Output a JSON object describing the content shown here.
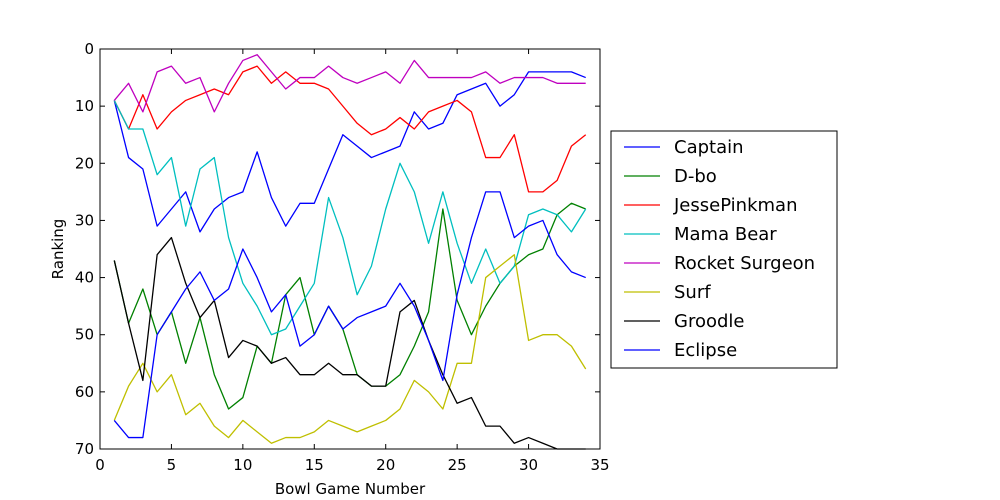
{
  "chart_data": {
    "type": "line",
    "title": "",
    "xlabel": "Bowl Game Number",
    "ylabel": "Ranking",
    "xlim": [
      0,
      35
    ],
    "ylim": [
      70,
      0
    ],
    "y_inverted": true,
    "xticks": [
      0,
      5,
      10,
      15,
      20,
      25,
      30,
      35
    ],
    "yticks": [
      0,
      10,
      20,
      30,
      40,
      50,
      60,
      70
    ],
    "grid": false,
    "legend_position": "right, outside plot",
    "x": [
      1,
      2,
      3,
      4,
      5,
      6,
      7,
      8,
      9,
      10,
      11,
      12,
      13,
      14,
      15,
      16,
      17,
      18,
      19,
      20,
      21,
      22,
      23,
      24,
      25,
      26,
      27,
      28,
      29,
      30,
      31,
      32,
      33,
      34
    ],
    "series": [
      {
        "name": "Captain",
        "color": "#0000ff",
        "values": [
          9,
          19,
          21,
          31,
          28,
          25,
          32,
          28,
          26,
          25,
          18,
          26,
          31,
          27,
          27,
          21,
          15,
          17,
          19,
          18,
          17,
          11,
          14,
          13,
          8,
          7,
          6,
          10,
          8,
          4,
          4,
          4,
          4,
          5
        ]
      },
      {
        "name": "D-bo",
        "color": "#008000",
        "values": [
          37,
          48,
          42,
          50,
          46,
          55,
          47,
          57,
          63,
          61,
          52,
          55,
          43,
          40,
          50,
          45,
          49,
          57,
          59,
          59,
          57,
          52,
          46,
          28,
          44,
          50,
          45,
          41,
          38,
          36,
          35,
          29,
          27,
          28
        ]
      },
      {
        "name": "JessePinkman",
        "color": "#ff0000",
        "values": [
          9,
          14,
          8,
          14,
          11,
          9,
          8,
          7,
          8,
          4,
          3,
          6,
          4,
          6,
          6,
          7,
          10,
          13,
          15,
          14,
          12,
          14,
          11,
          10,
          9,
          11,
          19,
          19,
          15,
          25,
          25,
          23,
          17,
          15
        ]
      },
      {
        "name": "Mama Bear",
        "color": "#00bfbf",
        "values": [
          9,
          14,
          14,
          22,
          19,
          31,
          21,
          19,
          33,
          41,
          45,
          50,
          49,
          45,
          41,
          26,
          33,
          43,
          38,
          28,
          20,
          25,
          34,
          25,
          34,
          41,
          35,
          41,
          38,
          29,
          28,
          29,
          32,
          28
        ]
      },
      {
        "name": "Rocket Surgeon",
        "color": "#bf00bf",
        "values": [
          9,
          6,
          11,
          4,
          3,
          6,
          5,
          11,
          6,
          2,
          1,
          4,
          7,
          5,
          5,
          3,
          5,
          6,
          5,
          4,
          6,
          2,
          5,
          5,
          5,
          5,
          4,
          6,
          5,
          5,
          5,
          6,
          6,
          6
        ]
      },
      {
        "name": "Surf",
        "color": "#bfbf00",
        "values": [
          65,
          59,
          55,
          60,
          57,
          64,
          62,
          66,
          68,
          65,
          67,
          69,
          68,
          68,
          67,
          65,
          66,
          67,
          66,
          65,
          63,
          58,
          60,
          63,
          55,
          55,
          40,
          38,
          36,
          51,
          50,
          50,
          52,
          56
        ]
      },
      {
        "name": "Groodle",
        "color": "#000000",
        "values": [
          37,
          48,
          58,
          36,
          33,
          41,
          47,
          44,
          54,
          51,
          52,
          55,
          54,
          57,
          57,
          55,
          57,
          57,
          59,
          59,
          46,
          44,
          51,
          57,
          62,
          61,
          66,
          66,
          69,
          68,
          69,
          70,
          70,
          70
        ]
      },
      {
        "name": "Eclipse",
        "color": "#0000ff",
        "values": [
          65,
          68,
          68,
          50,
          46,
          42,
          39,
          44,
          42,
          35,
          40,
          46,
          43,
          52,
          50,
          45,
          49,
          47,
          46,
          45,
          41,
          45,
          51,
          58,
          43,
          33,
          25,
          25,
          33,
          31,
          30,
          36,
          39,
          40
        ]
      }
    ]
  }
}
